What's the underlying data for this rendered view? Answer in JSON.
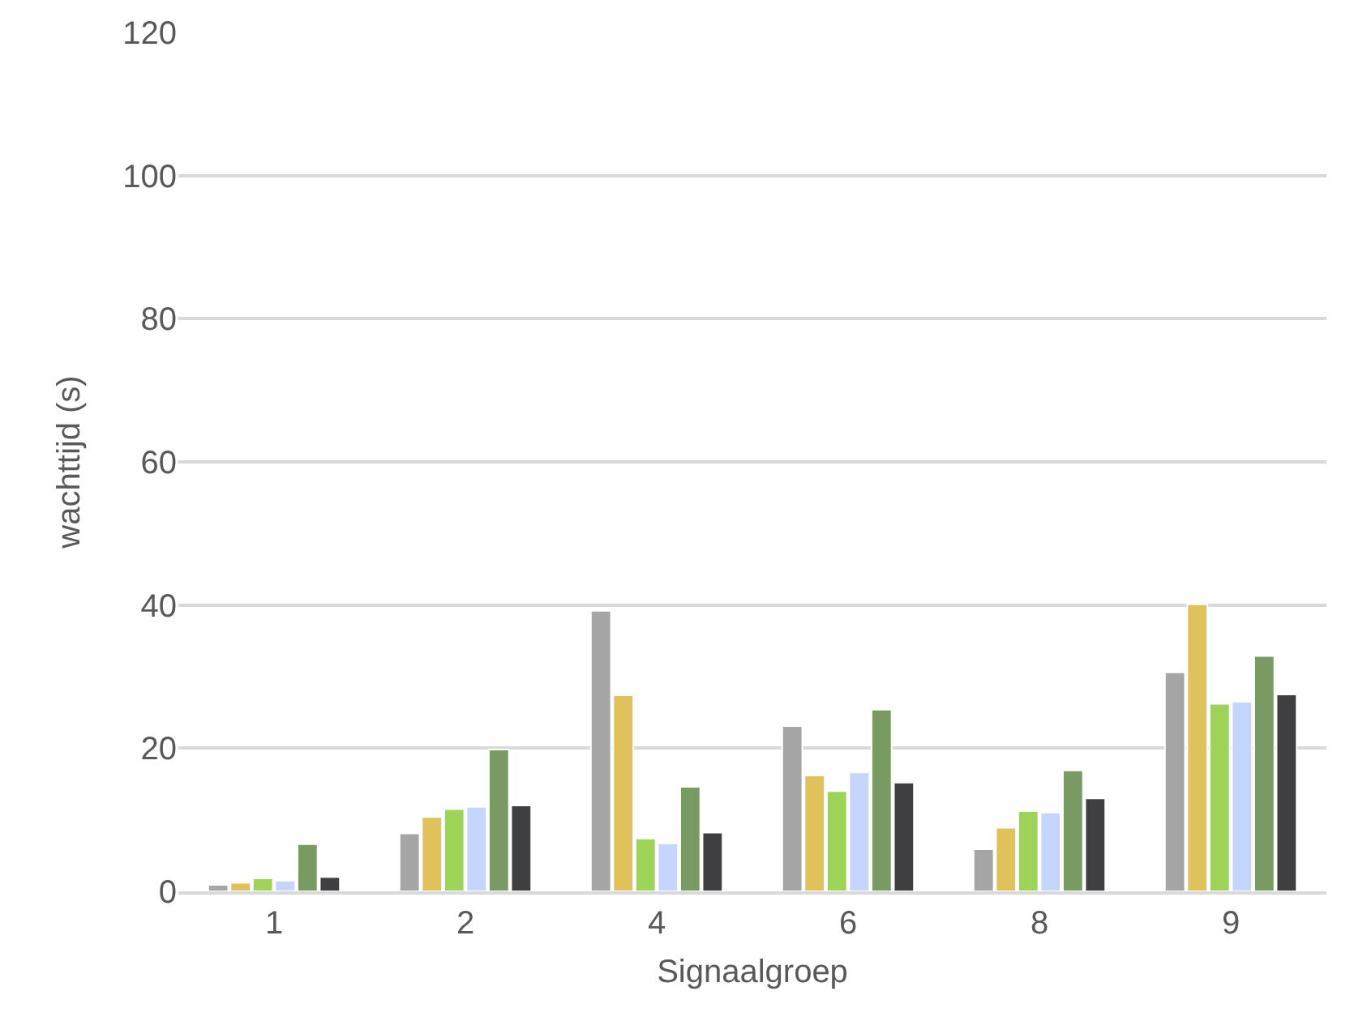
{
  "chart_data": {
    "type": "bar",
    "xlabel": "Signaalgroep",
    "ylabel": "wachttijd (s)",
    "categories": [
      "1",
      "2",
      "4",
      "6",
      "8",
      "9"
    ],
    "series": [
      {
        "color": "#a5a5a5",
        "values": [
          0.9,
          8.1,
          39.2,
          23.1,
          5.9,
          30.6
        ]
      },
      {
        "color": "#dfc25a",
        "values": [
          1.2,
          10.4,
          27.4,
          16.2,
          8.9,
          40.1
        ]
      },
      {
        "color": "#9dd356",
        "values": [
          1.8,
          11.5,
          7.4,
          14.0,
          11.2,
          26.2
        ]
      },
      {
        "color": "#c5d5fb",
        "values": [
          1.5,
          11.8,
          6.7,
          16.6,
          11.0,
          26.5
        ]
      },
      {
        "color": "#7a9a63",
        "values": [
          6.6,
          19.8,
          14.6,
          25.4,
          16.9,
          32.9
        ]
      },
      {
        "color": "#3f3f41",
        "values": [
          2.0,
          12.0,
          8.2,
          15.2,
          13.0,
          27.5
        ]
      }
    ],
    "ylim": [
      0,
      120
    ],
    "yticks": [
      0,
      20,
      40,
      60,
      80,
      100,
      120
    ],
    "grid": "y"
  }
}
